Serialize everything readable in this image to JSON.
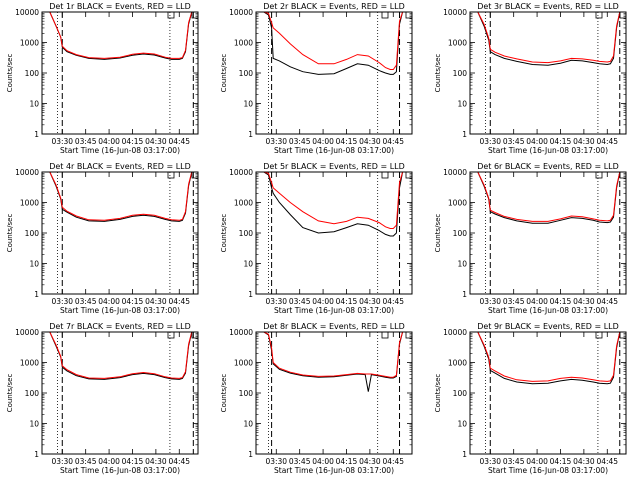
{
  "colors": {
    "events": "#000000",
    "lld": "#ff0000",
    "axes": "#000000"
  },
  "common": {
    "xlabel": "Start Time (16-Jun-08 03:17:00)",
    "ylabel": "Counts/sec",
    "y_ticks": [
      "1",
      "10",
      "100",
      "1000",
      "10000"
    ],
    "x_ticks": [
      "03:30",
      "03:45",
      "04:00",
      "04:15",
      "04:30",
      "04:45"
    ],
    "ylim": [
      1,
      10000
    ],
    "xlim_minutes": [
      0,
      100
    ],
    "log_y": true
  },
  "chart_data": [
    {
      "type": "line",
      "title": "Det 1r BLACK = Events, RED = LLD",
      "x": [
        0,
        5,
        9,
        12,
        13,
        16,
        22,
        30,
        40,
        50,
        58,
        65,
        72,
        79,
        83,
        88,
        90,
        92,
        94,
        96,
        98,
        100
      ],
      "series": [
        {
          "values": [
            10000,
            10000,
            3500,
            1500,
            700,
            500,
            380,
            300,
            280,
            310,
            380,
            420,
            390,
            310,
            280,
            280,
            300,
            500,
            4000,
            10000,
            10000,
            10000
          ]
        },
        {
          "values": [
            10000,
            10000,
            3500,
            1500,
            750,
            540,
            400,
            320,
            300,
            330,
            410,
            450,
            420,
            330,
            300,
            300,
            320,
            550,
            4500,
            10000,
            10000,
            10000
          ]
        }
      ],
      "dotted_x": [
        10,
        82
      ],
      "dashed_x": [
        13,
        97
      ]
    },
    {
      "type": "line",
      "title": "Det 2r BLACK = Events, RED = LLD",
      "x": [
        0,
        5,
        8,
        10,
        11,
        15,
        22,
        30,
        40,
        50,
        58,
        65,
        72,
        79,
        83,
        86,
        88,
        90,
        92,
        94,
        96,
        100
      ],
      "series": [
        {
          "values": [
            10000,
            10000,
            8000,
            3000,
            300,
            250,
            160,
            110,
            90,
            95,
            140,
            200,
            180,
            120,
            100,
            90,
            90,
            110,
            4000,
            10000,
            10000,
            10000
          ]
        },
        {
          "values": [
            10000,
            10000,
            9000,
            4500,
            3000,
            2000,
            900,
            400,
            200,
            200,
            280,
            400,
            360,
            220,
            150,
            130,
            130,
            180,
            5000,
            10000,
            10000,
            10000
          ]
        }
      ],
      "dotted_x": [
        8,
        78
      ],
      "dashed_x": [
        10,
        92
      ]
    },
    {
      "type": "line",
      "title": "Det 3r BLACK = Events, RED = LLD",
      "x": [
        0,
        5,
        9,
        12,
        13,
        16,
        22,
        30,
        40,
        50,
        58,
        65,
        72,
        79,
        83,
        88,
        90,
        92,
        94,
        96,
        98,
        100
      ],
      "series": [
        {
          "values": [
            10000,
            10000,
            3500,
            1200,
            500,
            400,
            300,
            240,
            190,
            180,
            210,
            260,
            250,
            220,
            200,
            190,
            200,
            300,
            3000,
            10000,
            10000,
            10000
          ]
        },
        {
          "values": [
            10000,
            10000,
            4000,
            1400,
            600,
            480,
            360,
            290,
            230,
            220,
            250,
            300,
            290,
            260,
            240,
            230,
            240,
            360,
            3500,
            10000,
            10000,
            10000
          ]
        }
      ],
      "dotted_x": [
        10,
        82
      ],
      "dashed_x": [
        13,
        96
      ]
    },
    {
      "type": "line",
      "title": "Det 4r BLACK = Events, RED = LLD",
      "x": [
        0,
        5,
        9,
        12,
        13,
        16,
        22,
        30,
        40,
        50,
        58,
        65,
        72,
        79,
        83,
        88,
        90,
        92,
        94,
        96,
        98,
        100
      ],
      "series": [
        {
          "values": [
            10000,
            10000,
            3500,
            1300,
            600,
            480,
            330,
            250,
            240,
            280,
            350,
            380,
            350,
            280,
            250,
            240,
            260,
            450,
            3500,
            10000,
            10000,
            10000
          ]
        },
        {
          "values": [
            10000,
            10000,
            3800,
            1400,
            700,
            520,
            360,
            270,
            260,
            300,
            380,
            410,
            380,
            300,
            270,
            260,
            280,
            500,
            4000,
            10000,
            10000,
            10000
          ]
        }
      ],
      "dotted_x": [
        10,
        82
      ],
      "dashed_x": [
        13,
        97
      ]
    },
    {
      "type": "line",
      "title": "Det 5r BLACK = Events, RED = LLD",
      "x": [
        0,
        5,
        8,
        10,
        11,
        15,
        22,
        30,
        40,
        50,
        58,
        65,
        72,
        79,
        83,
        86,
        88,
        90,
        92,
        94,
        96,
        100
      ],
      "series": [
        {
          "values": [
            10000,
            10000,
            8000,
            3000,
            2000,
            1000,
            400,
            150,
            100,
            110,
            150,
            200,
            180,
            120,
            90,
            80,
            80,
            100,
            3000,
            10000,
            10000,
            10000
          ]
        },
        {
          "values": [
            10000,
            10000,
            9000,
            4500,
            3000,
            2000,
            1000,
            500,
            250,
            200,
            240,
            330,
            300,
            220,
            160,
            140,
            140,
            180,
            4500,
            10000,
            10000,
            10000
          ]
        }
      ],
      "dotted_x": [
        8,
        78
      ],
      "dashed_x": [
        10,
        92
      ]
    },
    {
      "type": "line",
      "title": "Det 6r BLACK = Events, RED = LLD",
      "x": [
        0,
        5,
        9,
        12,
        13,
        16,
        22,
        30,
        40,
        50,
        58,
        65,
        72,
        79,
        83,
        88,
        90,
        92,
        94,
        96,
        98,
        100
      ],
      "series": [
        {
          "values": [
            10000,
            10000,
            3500,
            1300,
            500,
            420,
            320,
            250,
            210,
            210,
            260,
            320,
            300,
            260,
            230,
            220,
            230,
            330,
            3000,
            10000,
            10000,
            10000
          ]
        },
        {
          "values": [
            10000,
            10000,
            3800,
            1400,
            560,
            470,
            350,
            280,
            240,
            240,
            290,
            360,
            340,
            290,
            260,
            250,
            260,
            380,
            3500,
            10000,
            10000,
            10000
          ]
        }
      ],
      "dotted_x": [
        10,
        82
      ],
      "dashed_x": [
        13,
        96
      ]
    },
    {
      "type": "line",
      "title": "Det 7r BLACK = Events, RED = LLD",
      "x": [
        0,
        5,
        9,
        12,
        13,
        16,
        22,
        30,
        40,
        50,
        58,
        65,
        72,
        79,
        83,
        88,
        90,
        92,
        94,
        96,
        98,
        100
      ],
      "series": [
        {
          "values": [
            10000,
            10000,
            3500,
            1500,
            700,
            530,
            370,
            290,
            280,
            320,
            400,
            440,
            400,
            320,
            290,
            280,
            300,
            450,
            3500,
            10000,
            10000,
            10000
          ]
        },
        {
          "values": [
            10000,
            10000,
            3800,
            1600,
            780,
            580,
            400,
            310,
            300,
            340,
            430,
            470,
            430,
            340,
            310,
            300,
            320,
            500,
            4000,
            10000,
            10000,
            10000
          ]
        }
      ],
      "dotted_x": [
        10,
        82
      ],
      "dashed_x": [
        13,
        97
      ]
    },
    {
      "type": "line",
      "title": "Det 8r BLACK = Events, RED = LLD",
      "x": [
        0,
        5,
        8,
        10,
        11,
        15,
        22,
        30,
        40,
        50,
        58,
        65,
        70,
        72,
        74,
        79,
        83,
        86,
        88,
        90,
        92,
        94,
        96,
        100
      ],
      "series": [
        {
          "values": [
            10000,
            10000,
            8000,
            2500,
            900,
            600,
            450,
            370,
            330,
            340,
            380,
            420,
            400,
            110,
            400,
            360,
            330,
            310,
            310,
            350,
            4000,
            10000,
            10000,
            10000
          ]
        },
        {
          "values": [
            10000,
            10000,
            8500,
            3000,
            1000,
            650,
            480,
            390,
            350,
            360,
            400,
            440,
            420,
            420,
            420,
            380,
            350,
            330,
            330,
            380,
            4500,
            10000,
            10000,
            10000
          ]
        }
      ],
      "dotted_x": [
        8,
        78
      ],
      "dashed_x": [
        10,
        92
      ]
    },
    {
      "type": "line",
      "title": "Det 9r BLACK = Events, RED = LLD",
      "x": [
        0,
        5,
        9,
        12,
        13,
        16,
        22,
        30,
        40,
        50,
        58,
        65,
        72,
        79,
        83,
        88,
        90,
        92,
        94,
        96,
        98,
        100
      ],
      "series": [
        {
          "values": [
            10000,
            10000,
            3500,
            1300,
            550,
            450,
            300,
            230,
            200,
            210,
            250,
            280,
            260,
            230,
            210,
            200,
            210,
            330,
            3000,
            10000,
            10000,
            10000
          ]
        },
        {
          "values": [
            10000,
            10000,
            3800,
            1500,
            650,
            530,
            360,
            270,
            240,
            250,
            300,
            330,
            310,
            270,
            250,
            240,
            250,
            380,
            3500,
            10000,
            10000,
            10000
          ]
        }
      ],
      "dotted_x": [
        10,
        82
      ],
      "dashed_x": [
        13,
        96
      ]
    }
  ]
}
